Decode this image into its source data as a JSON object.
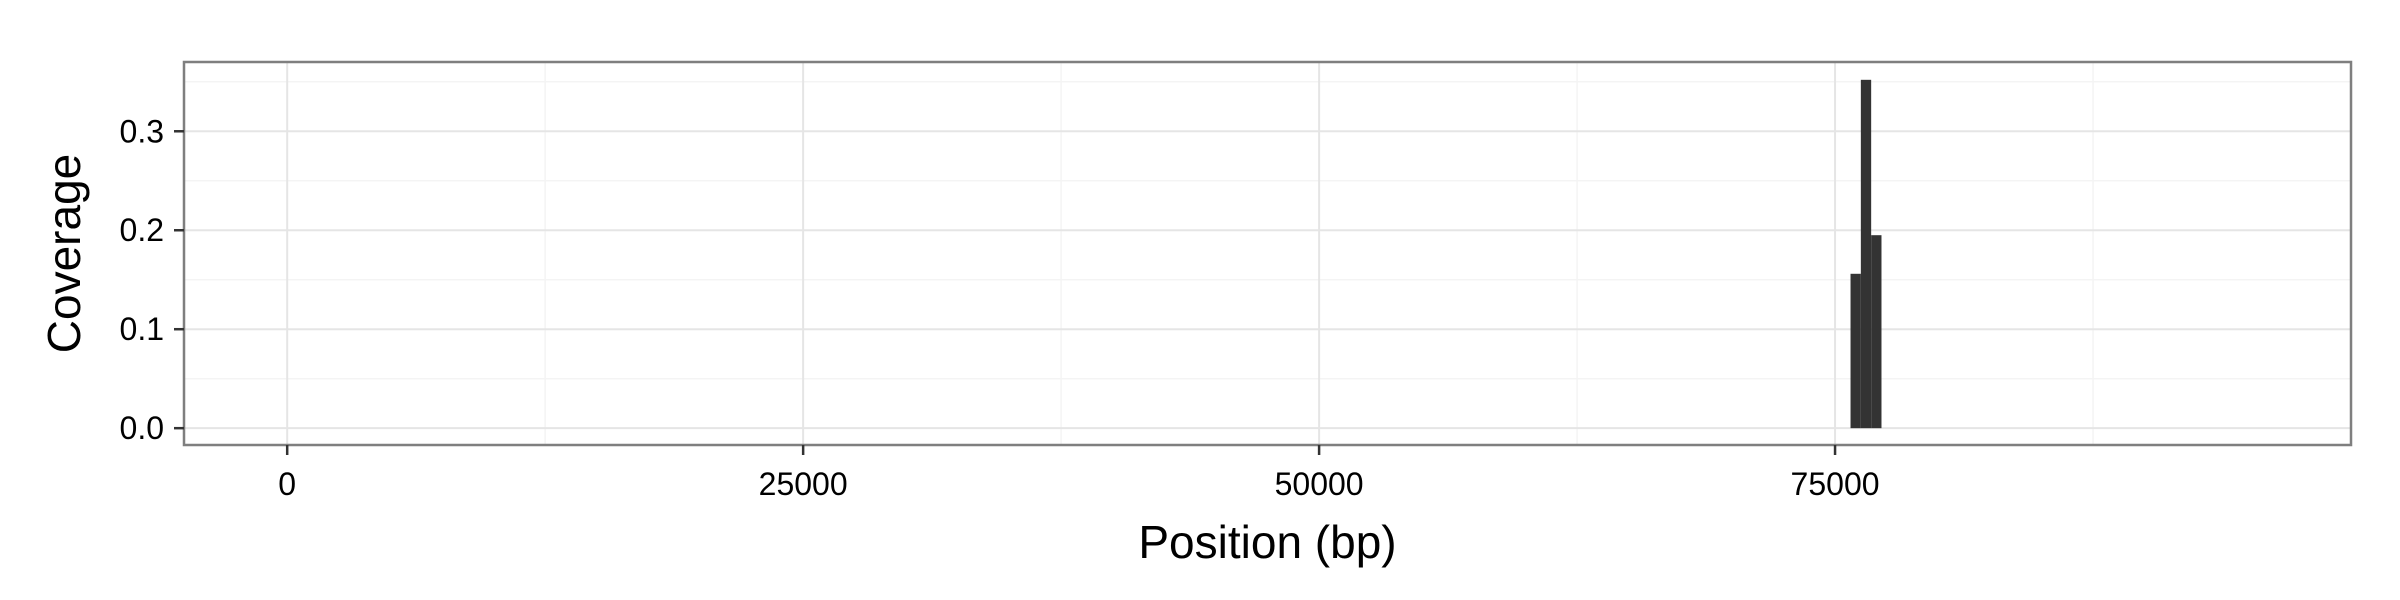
{
  "chart_data": {
    "type": "bar",
    "title": "",
    "xlabel": "Position (bp)",
    "ylabel": "Coverage",
    "xlim": [
      -5000,
      100000
    ],
    "ylim": [
      -0.017,
      0.37
    ],
    "x_ticks": [
      0,
      25000,
      50000,
      75000
    ],
    "x_tick_labels": [
      "0",
      "25000",
      "50000",
      "75000"
    ],
    "y_ticks": [
      0.0,
      0.1,
      0.2,
      0.3
    ],
    "y_tick_labels": [
      "0.0",
      "0.1",
      "0.2",
      "0.3"
    ],
    "bar_width": 500,
    "x": [
      76000,
      76500,
      77000
    ],
    "values": [
      0.156,
      0.352,
      0.195
    ],
    "grid": true,
    "theme": "bw",
    "colors": {
      "bar": "#333333",
      "panel_border": "#7f7f7f",
      "grid_major": "#e5e5e5",
      "grid_minor": "#f4f4f4",
      "tick": "#333333"
    }
  }
}
